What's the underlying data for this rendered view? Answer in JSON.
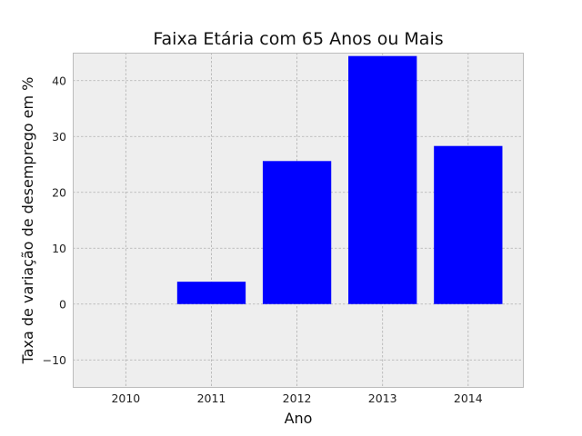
{
  "chart_data": {
    "type": "bar",
    "title": "Faixa Etária com 65 Anos ou Mais",
    "xlabel": "Ano",
    "ylabel": "Taxa de variação de desemprego em %",
    "categories": [
      "2010",
      "2011",
      "2012",
      "2013",
      "2014"
    ],
    "values": [
      0,
      4.0,
      25.6,
      44.4,
      28.3
    ],
    "ylim": [
      -15,
      45
    ],
    "yticks": [
      -10,
      0,
      10,
      20,
      30,
      40
    ],
    "grid": true,
    "legend": "none",
    "colors": {
      "bar": "#0000ff",
      "plot_background": "#eeeeee",
      "grid": "#b0b0b0",
      "frame": "#bcbcbc"
    }
  }
}
